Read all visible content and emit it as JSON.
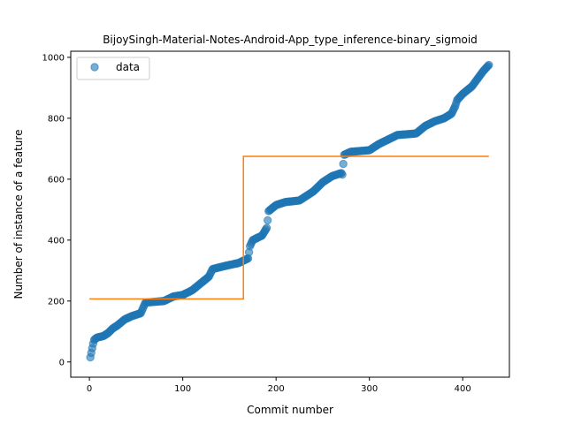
{
  "chart_data": {
    "type": "scatter",
    "title": "BijoySingh-Material-Notes-Android-App_type_inference-binary_sigmoid",
    "xlabel": "Commit number",
    "ylabel": "Number of instance of a feature",
    "xlim": [
      -20,
      450
    ],
    "ylim": [
      -50,
      1020
    ],
    "xticks": [
      0,
      100,
      200,
      300,
      400
    ],
    "yticks": [
      0,
      200,
      400,
      600,
      800,
      1000
    ],
    "legend": {
      "position": "top-left",
      "entries": [
        "data"
      ]
    },
    "colors": {
      "data": "#1f77b4",
      "fit": "#ff7f0e"
    },
    "series": [
      {
        "name": "data",
        "kind": "scatter",
        "anchors": [
          [
            1,
            15
          ],
          [
            2,
            30
          ],
          [
            3,
            45
          ],
          [
            4,
            60
          ],
          [
            5,
            72
          ],
          [
            8,
            80
          ],
          [
            15,
            85
          ],
          [
            20,
            95
          ],
          [
            25,
            110
          ],
          [
            30,
            120
          ],
          [
            38,
            140
          ],
          [
            45,
            150
          ],
          [
            55,
            160
          ],
          [
            60,
            195
          ],
          [
            80,
            200
          ],
          [
            90,
            215
          ],
          [
            100,
            220
          ],
          [
            110,
            235
          ],
          [
            120,
            260
          ],
          [
            128,
            280
          ],
          [
            132,
            305
          ],
          [
            145,
            315
          ],
          [
            160,
            325
          ],
          [
            170,
            340
          ],
          [
            172,
            380
          ],
          [
            175,
            400
          ],
          [
            185,
            415
          ],
          [
            190,
            440
          ],
          [
            191,
            465
          ],
          [
            192,
            495
          ],
          [
            200,
            515
          ],
          [
            210,
            525
          ],
          [
            225,
            530
          ],
          [
            230,
            540
          ],
          [
            240,
            560
          ],
          [
            250,
            590
          ],
          [
            260,
            610
          ],
          [
            270,
            620
          ],
          [
            271,
            615
          ],
          [
            272,
            650
          ],
          [
            273,
            680
          ],
          [
            280,
            690
          ],
          [
            300,
            695
          ],
          [
            310,
            715
          ],
          [
            320,
            730
          ],
          [
            330,
            745
          ],
          [
            350,
            750
          ],
          [
            360,
            775
          ],
          [
            370,
            790
          ],
          [
            380,
            800
          ],
          [
            388,
            815
          ],
          [
            392,
            840
          ],
          [
            394,
            860
          ],
          [
            400,
            880
          ],
          [
            410,
            905
          ],
          [
            416,
            930
          ],
          [
            422,
            955
          ],
          [
            428,
            975
          ]
        ],
        "count": 428
      },
      {
        "name": "",
        "kind": "step",
        "points": [
          [
            0,
            207
          ],
          [
            165,
            207
          ],
          [
            165,
            675
          ],
          [
            428,
            675
          ]
        ]
      }
    ]
  }
}
